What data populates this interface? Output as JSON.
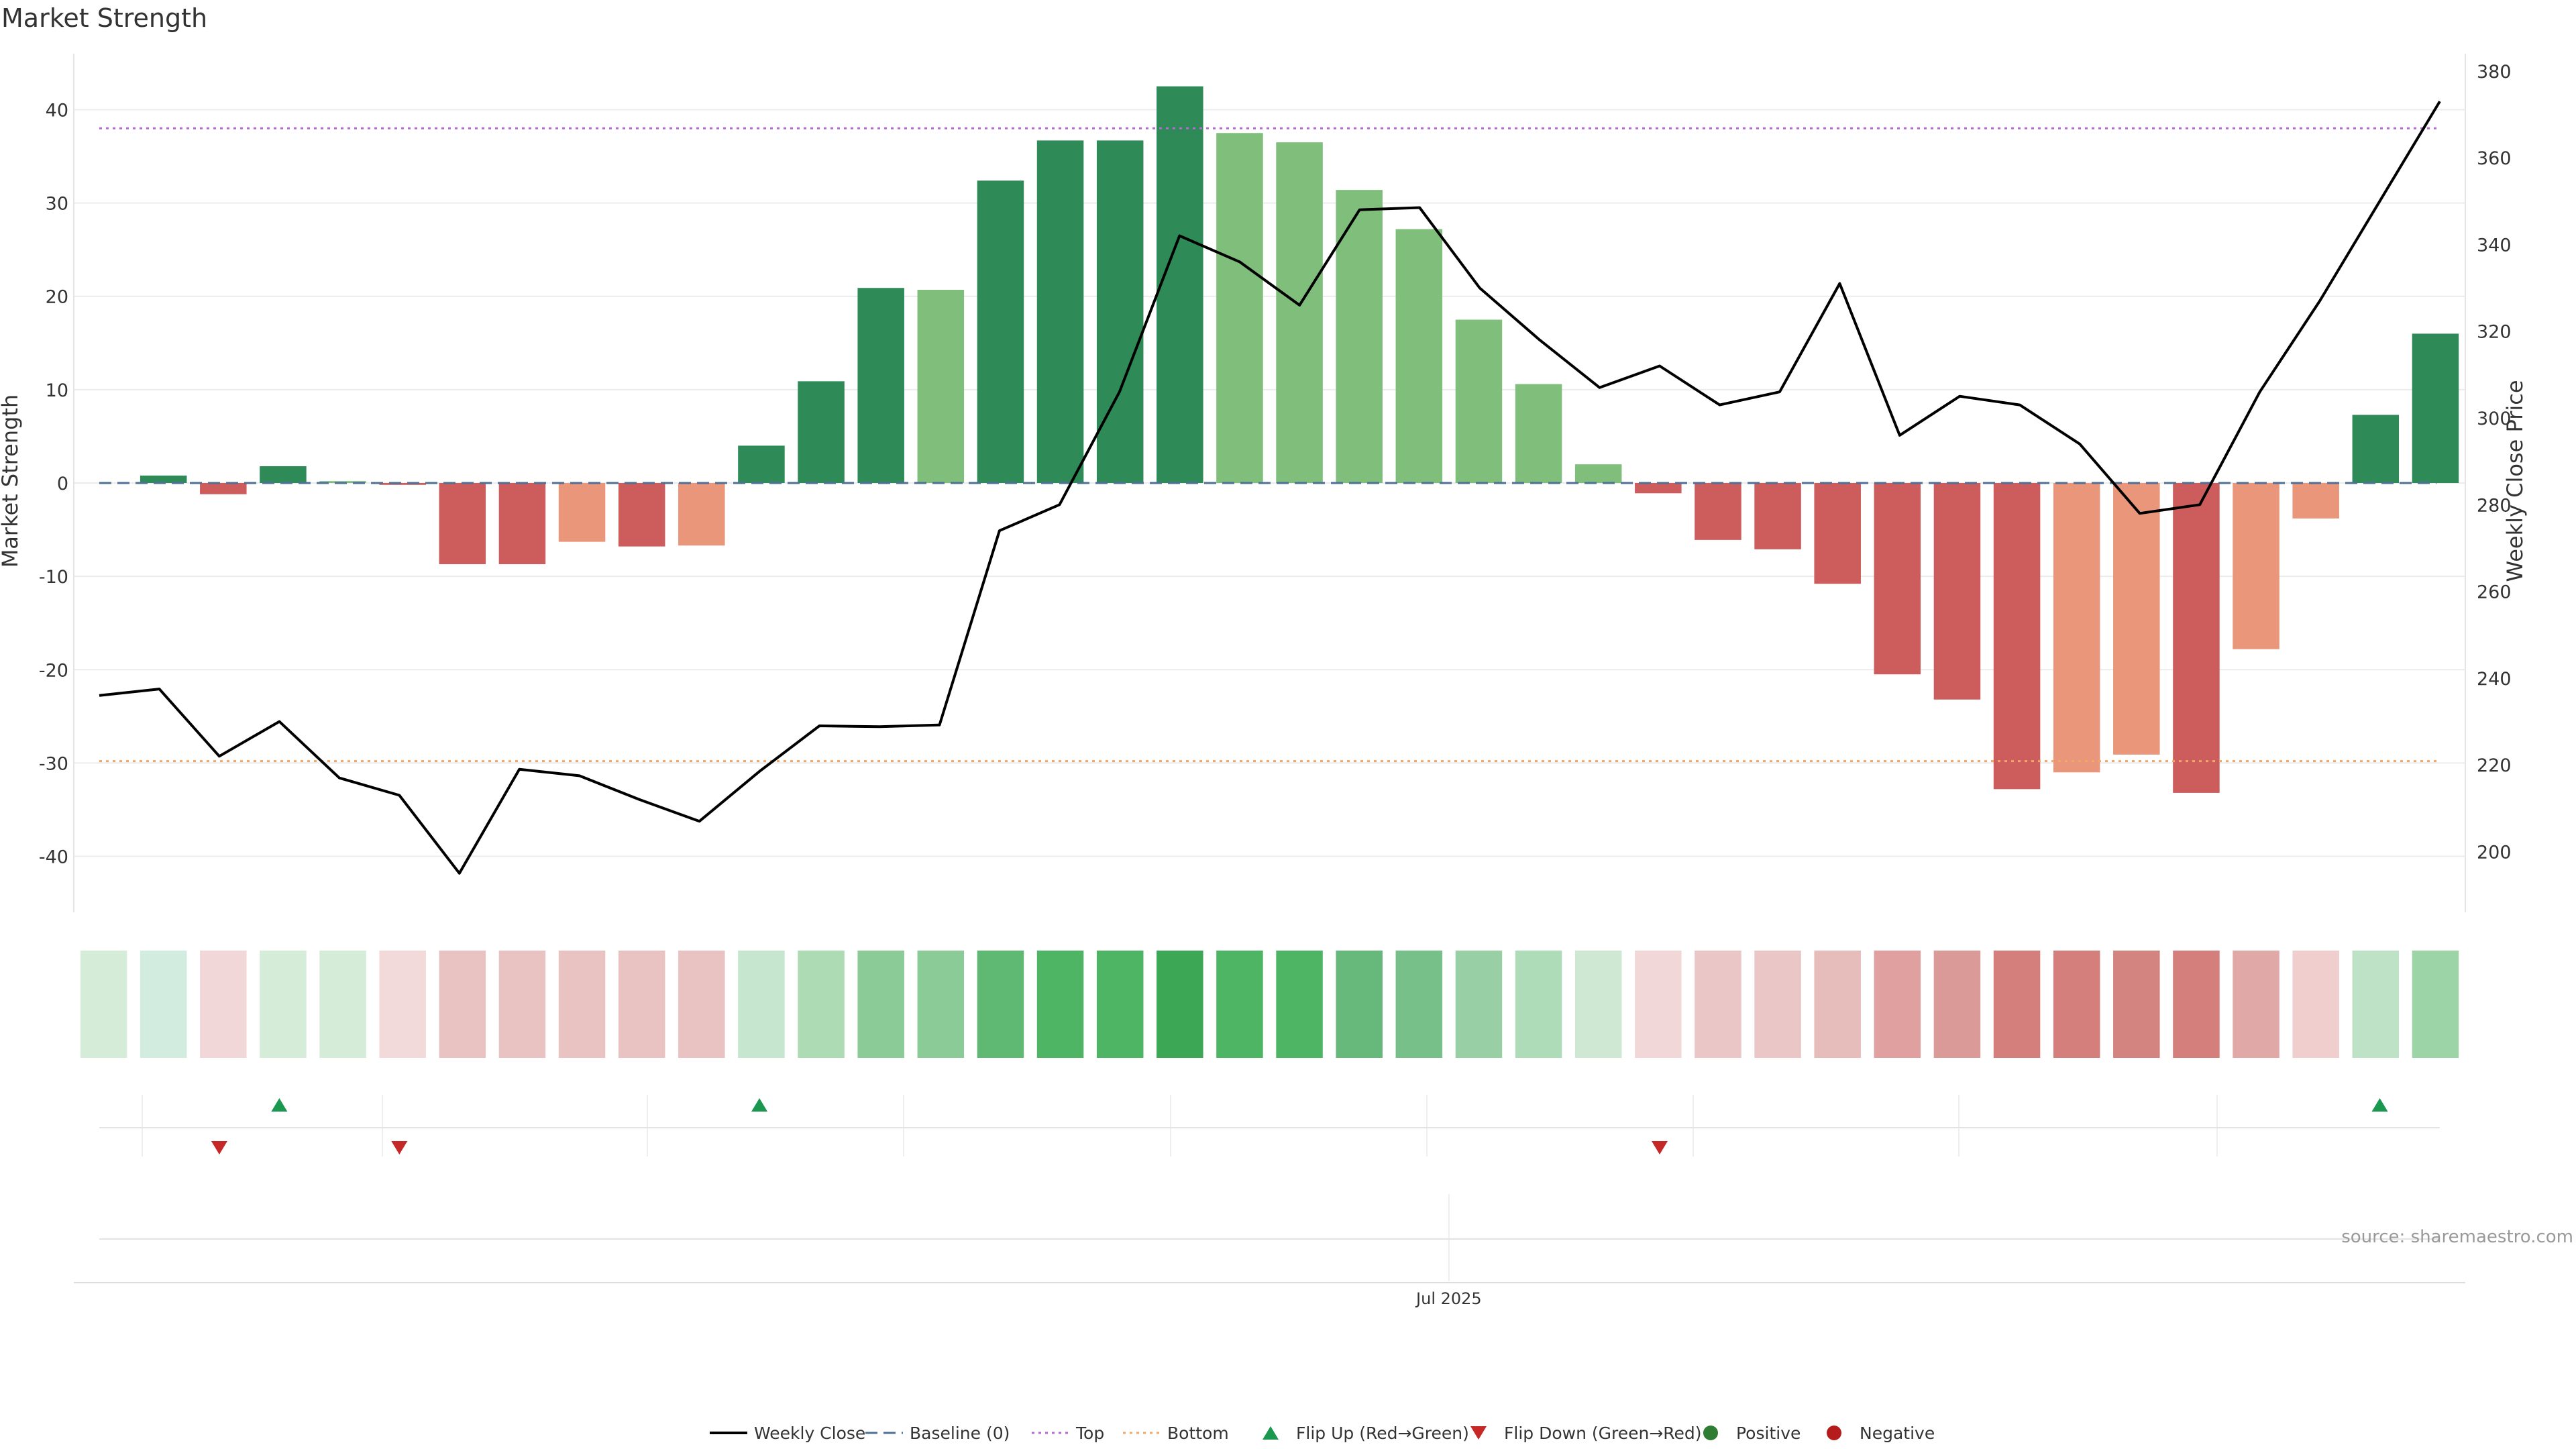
{
  "chart_data": {
    "type": "bar",
    "title": "Market Strength",
    "ylabel": "Market Strength",
    "y2label": "Weekly Close Price",
    "ylim": [
      -46,
      46
    ],
    "y2lim": [
      186,
      384
    ],
    "yticks": [
      "-40",
      "-30",
      "-20",
      "-10",
      "0",
      "10",
      "20",
      "30",
      "40"
    ],
    "y2ticks": [
      "200",
      "220",
      "240",
      "260",
      "280",
      "300",
      "320",
      "340",
      "360",
      "380"
    ],
    "x_tick_label": "Jul 2025",
    "x_tick_index": 22.5,
    "strength": [
      0,
      0.8,
      -1.2,
      1.8,
      0.2,
      -0.2,
      -8.7,
      -8.7,
      -6.3,
      -6.8,
      -6.7,
      4.0,
      10.9,
      20.9,
      20.7,
      32.4,
      36.7,
      36.7,
      42.5,
      37.5,
      36.5,
      31.4,
      27.2,
      17.5,
      10.6,
      2.0,
      -1.1,
      -6.1,
      -7.1,
      -10.8,
      -20.5,
      -23.2,
      -32.8,
      -31.0,
      -29.1,
      -33.2,
      -17.8,
      -3.8,
      7.3,
      16.0
    ],
    "weekly_close": [
      236,
      237.5,
      222,
      230,
      217,
      213,
      195,
      219,
      217.5,
      212,
      207,
      218.5,
      229,
      228.8,
      229.2,
      274,
      280,
      306,
      342,
      336,
      326,
      348,
      348.5,
      330,
      318,
      307,
      312,
      303,
      306,
      331,
      296,
      305,
      303,
      294,
      278,
      280,
      306,
      327,
      350,
      373
    ],
    "baseline": 0,
    "top_level": 38,
    "bottom_level": -29.8,
    "flip_up": [
      3,
      11,
      38
    ],
    "flip_down": [
      2,
      5,
      26
    ],
    "heat_colors": [
      "#d4ecd8",
      "#d2ece0",
      "#f1d7d8",
      "#d4ecd8",
      "#d4ecd8",
      "#f2dada",
      "#e9c3c2",
      "#e9c3c2",
      "#e9c3c2",
      "#e9c3c2",
      "#e9c3c2",
      "#c7e6cf",
      "#acdbb4",
      "#8acb97",
      "#8acb97",
      "#60b973",
      "#4db563",
      "#4db563",
      "#3ca855",
      "#4db563",
      "#4db563",
      "#66b97b",
      "#77c089",
      "#98cfa4",
      "#aedcb8",
      "#cee8d4",
      "#f1d7d8",
      "#ebc6c6",
      "#ebc6c6",
      "#e6bdbb",
      "#dfa09f",
      "#da9a98",
      "#d47f7c",
      "#d47f7c",
      "#d48480",
      "#d47f7c",
      "#e0a9a8",
      "#efcecd",
      "#bde2c5",
      "#9dd4a7"
    ],
    "colors": {
      "strong_positive": "#2e8b57",
      "weak_positive": "#7fbf7b",
      "strong_negative": "#cd5c5c",
      "weak_negative": "#e9967a",
      "line": "#000000",
      "baseline": "#4d6f99",
      "top": "#b36bd0",
      "bottom": "#f0a868",
      "flip_up": "#1a9850",
      "flip_down": "#c62828",
      "positive_dot": "#2e7d32",
      "negative_dot": "#b71c1c"
    },
    "legend": [
      {
        "label": "Weekly Close",
        "kind": "line"
      },
      {
        "label": "Baseline (0)",
        "kind": "dashed"
      },
      {
        "label": "Top",
        "kind": "dotted-top"
      },
      {
        "label": "Bottom",
        "kind": "dotted-bottom"
      },
      {
        "label": "Flip Up (Red→Green)",
        "kind": "tri-up"
      },
      {
        "label": "Flip Down (Green→Red)",
        "kind": "tri-down"
      },
      {
        "label": "Positive",
        "kind": "dot-pos"
      },
      {
        "label": "Negative",
        "kind": "dot-neg"
      }
    ],
    "legend_position": "bottom",
    "grid": true
  },
  "source": "source: sharemaestro.com"
}
